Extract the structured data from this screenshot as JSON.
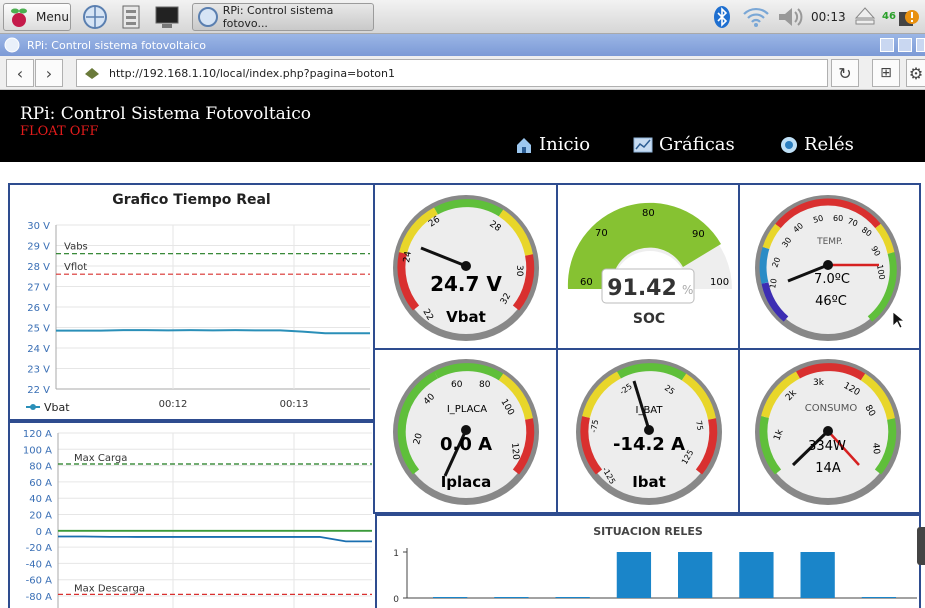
{
  "taskbar": {
    "menu_label": "Menu",
    "window_label": "RPi: Control sistema fotovo...",
    "clock": "00:13",
    "battery_badge": "46"
  },
  "browser": {
    "title": "RPi: Control sistema fotovoltaico",
    "url": "http://192.168.1.10/local/index.php?pagina=boton1"
  },
  "header": {
    "title": "RPi: Control Sistema Fotovoltaico",
    "float_status": "FLOAT OFF",
    "menu": [
      {
        "label": "Inicio",
        "icon": "home-icon"
      },
      {
        "label": "Gráficas",
        "icon": "chart-icon"
      },
      {
        "label": "Relés",
        "icon": "circle-icon"
      }
    ]
  },
  "voltage_chart": {
    "title": "Grafico Tiempo Real",
    "y_ticks": [
      "30 V",
      "29 V",
      "28 V",
      "27 V",
      "26 V",
      "25 V",
      "24 V",
      "23 V",
      "22 V"
    ],
    "x_ticks": [
      "00:12",
      "00:13"
    ],
    "ref_vabs": "Vabs",
    "ref_vflot": "Vflot",
    "legend": "Vbat"
  },
  "current_chart": {
    "y_ticks": [
      "120 A",
      "100 A",
      "80 A",
      "60 A",
      "40 A",
      "20 A",
      "0 A",
      "-20 A",
      "-40 A",
      "-60 A",
      "-80 A"
    ],
    "ref_max_carga": "Max Carga",
    "ref_max_descarga": "Max Descarga"
  },
  "gauges": {
    "vbat": {
      "value": "24.7 V",
      "label": "Vbat",
      "ticks": [
        "22",
        "24",
        "26",
        "28",
        "30",
        "32"
      ]
    },
    "soc": {
      "value": "91.42",
      "unit": "%",
      "label": "SOC",
      "ticks": [
        "60",
        "70",
        "80",
        "90",
        "100"
      ]
    },
    "temp": {
      "title": "TEMP.",
      "value1": "7.0ºC",
      "value2": "46ºC",
      "ticks": [
        "10",
        "20",
        "30",
        "40",
        "50",
        "60",
        "70",
        "80",
        "90",
        "100"
      ]
    },
    "iplaca": {
      "title": "I_PLACA",
      "value": "0.0 A",
      "label": "Iplaca",
      "ticks": [
        "20",
        "40",
        "60",
        "80",
        "100",
        "120"
      ]
    },
    "ibat": {
      "title": "I_BAT",
      "value": "-14.2 A",
      "label": "Ibat",
      "ticks": [
        "-125",
        "-75",
        "-25",
        "25",
        "75",
        "125"
      ]
    },
    "consumo": {
      "title": "CONSUMO",
      "value1": "334W",
      "value2": "14A",
      "ticks": [
        "1k",
        "2k",
        "3k",
        "120",
        "80",
        "40"
      ]
    }
  },
  "relays": {
    "title": "SITUACION RELES",
    "y_ticks": [
      "1",
      "0"
    ]
  },
  "chart_data": [
    {
      "type": "line",
      "title": "Grafico Tiempo Real",
      "ylabel": "",
      "ylim": [
        22,
        30
      ],
      "series": [
        {
          "name": "Vbat",
          "values": [
            24.85,
            24.85,
            24.85,
            24.87,
            24.87,
            24.86,
            24.87,
            24.86,
            24.87,
            24.86,
            24.86,
            24.8,
            24.72,
            24.72,
            24.72
          ]
        }
      ],
      "reference_lines": [
        {
          "label": "Vabs",
          "value": 28.6
        },
        {
          "label": "Vflot",
          "value": 27.6
        }
      ]
    },
    {
      "type": "line",
      "ylim": [
        -80,
        120
      ],
      "series": [
        {
          "values": [
            0,
            0,
            0,
            0,
            0,
            0,
            0,
            0,
            0,
            0,
            0,
            0,
            0
          ]
        },
        {
          "values": [
            -7,
            -7,
            -7.5,
            -7.5,
            -7.5,
            -7.5,
            -7.5,
            -7.5,
            -7.5,
            -7.5,
            -7.5,
            -13,
            -13
          ]
        }
      ],
      "reference_lines": [
        {
          "label": "Max Carga",
          "value": 82
        },
        {
          "label": "Max Descarga",
          "value": -78
        }
      ]
    },
    {
      "type": "bar",
      "title": "SITUACION RELES",
      "ylim": [
        0,
        1
      ],
      "values": [
        0,
        0,
        0,
        1,
        1,
        1,
        1,
        0
      ]
    }
  ],
  "colors": {
    "accent": "#1a85c9",
    "panel_border": "#2e4c8f",
    "float_off": "#e21b1b"
  }
}
